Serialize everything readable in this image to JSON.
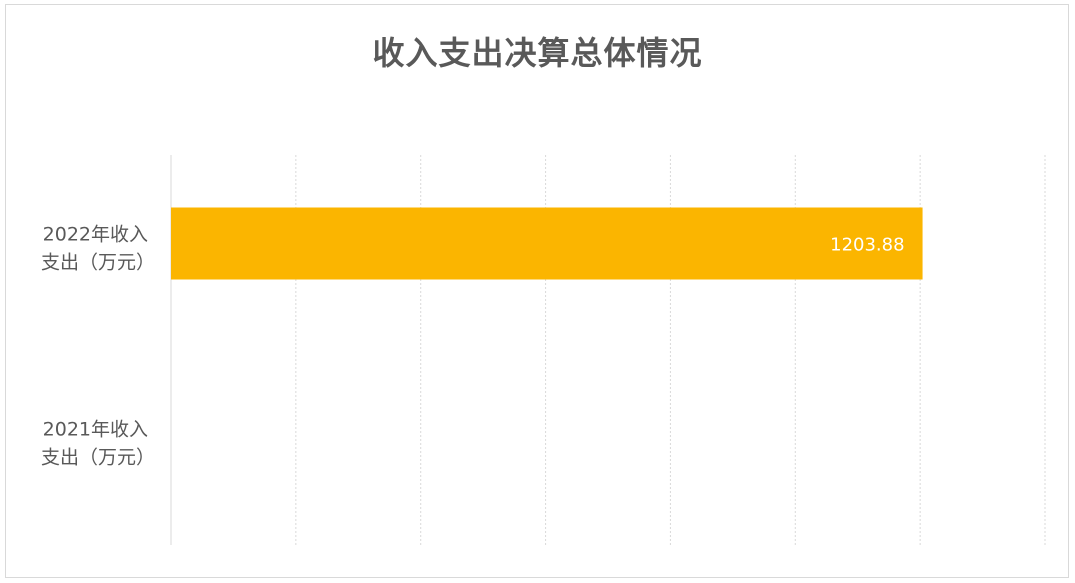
{
  "chart_data": {
    "type": "bar",
    "orientation": "horizontal",
    "title": "收入支出决算总体情况",
    "categories": [
      {
        "line1": "2022年收入",
        "line2": "支出（万元）"
      },
      {
        "line1": "2021年收入",
        "line2": "支出（万元）"
      }
    ],
    "values": [
      1203.88,
      null
    ],
    "data_labels": [
      "1203.88",
      ""
    ],
    "xlim": [
      0,
      1400
    ],
    "x_tick_step": 200,
    "x_tick_labels_shown": false,
    "grid": true,
    "legend": "none",
    "colors": {
      "bar": "#FBB500",
      "grid": "#d9d9d9",
      "text": "#595959",
      "data_label": "#ffffff"
    }
  }
}
